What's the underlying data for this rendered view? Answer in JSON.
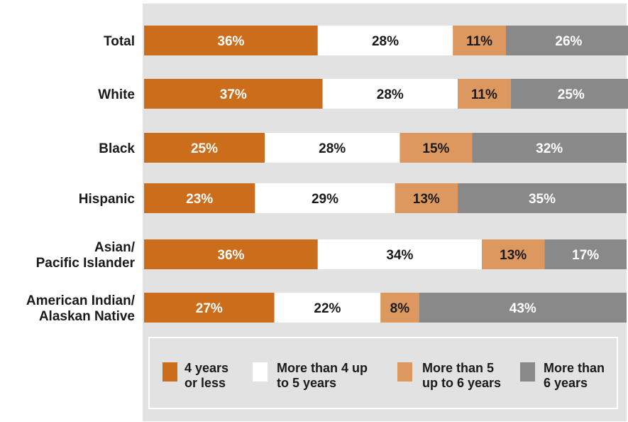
{
  "chart_data": {
    "type": "bar",
    "orientation": "horizontal",
    "stacked": true,
    "unit": "%",
    "categories": [
      "Total",
      "White",
      "Black",
      "Hispanic",
      "Asian/\nPacific Islander",
      "American Indian/\nAlaskan Native"
    ],
    "series": [
      {
        "name": "4 years\nor less",
        "color": "#cc6d1c",
        "text_color": "#ffffff",
        "values": [
          36,
          37,
          25,
          23,
          36,
          27
        ]
      },
      {
        "name": "More than 4 up\nto 5 years",
        "color": "#ffffff",
        "text_color": "#1a1a1a",
        "values": [
          28,
          28,
          28,
          29,
          34,
          22
        ]
      },
      {
        "name": "More than 5\nup to 6 years",
        "color": "#dd9860",
        "text_color": "#1a1a1a",
        "values": [
          11,
          11,
          15,
          13,
          13,
          8
        ]
      },
      {
        "name": "More than\n6 years",
        "color": "#898989",
        "text_color": "#ffffff",
        "values": [
          26,
          25,
          32,
          35,
          17,
          43
        ]
      }
    ],
    "xlim": [
      0,
      100
    ],
    "legend_position": "bottom",
    "plot_background": "#e2e2e2"
  }
}
